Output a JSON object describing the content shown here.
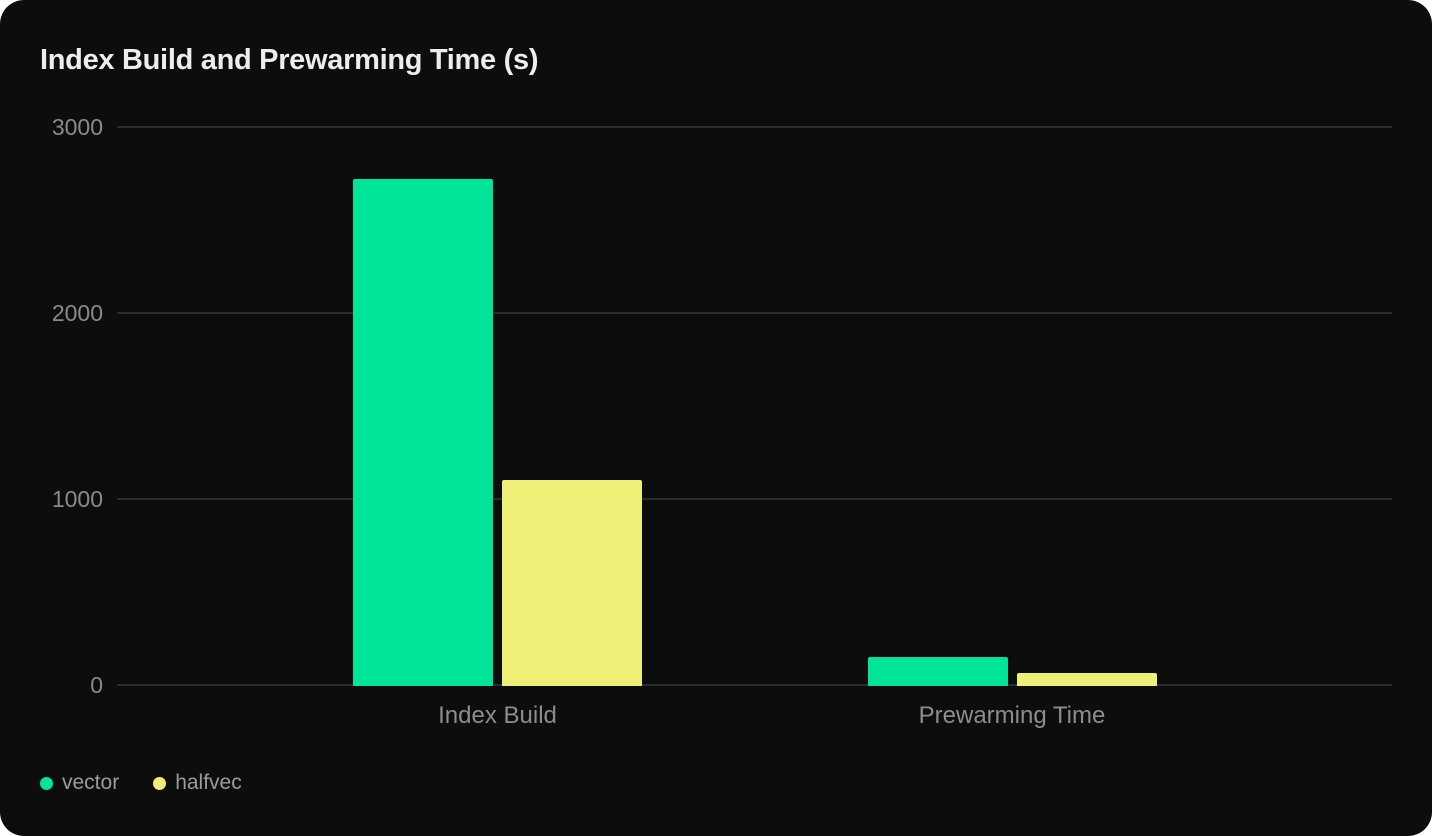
{
  "title": "Index Build and Prewarming Time (s)",
  "chart_data": {
    "type": "bar",
    "title": "Index Build and Prewarming Time (s)",
    "unit": "s",
    "categories": [
      "Index Build",
      "Prewarming Time"
    ],
    "series": [
      {
        "name": "vector",
        "color": "#00e599",
        "values": [
          2720,
          150
        ]
      },
      {
        "name": "halfvec",
        "color": "#edef77",
        "values": [
          1100,
          65
        ]
      }
    ],
    "ylim": [
      0,
      3000
    ],
    "yticks": [
      0,
      1000,
      2000,
      3000
    ],
    "xlabel": "",
    "ylabel": "",
    "grid": "horizontal",
    "legend_position": "bottom-left"
  },
  "colors": {
    "card_background": "#0d0d0d",
    "page_background": "#ffffff",
    "gridline": "#2b2d2d",
    "title_text": "#ededed",
    "tick_text": "#8a8a8a",
    "category_text": "#8b8d91",
    "legend_text": "#9b9b9b"
  }
}
